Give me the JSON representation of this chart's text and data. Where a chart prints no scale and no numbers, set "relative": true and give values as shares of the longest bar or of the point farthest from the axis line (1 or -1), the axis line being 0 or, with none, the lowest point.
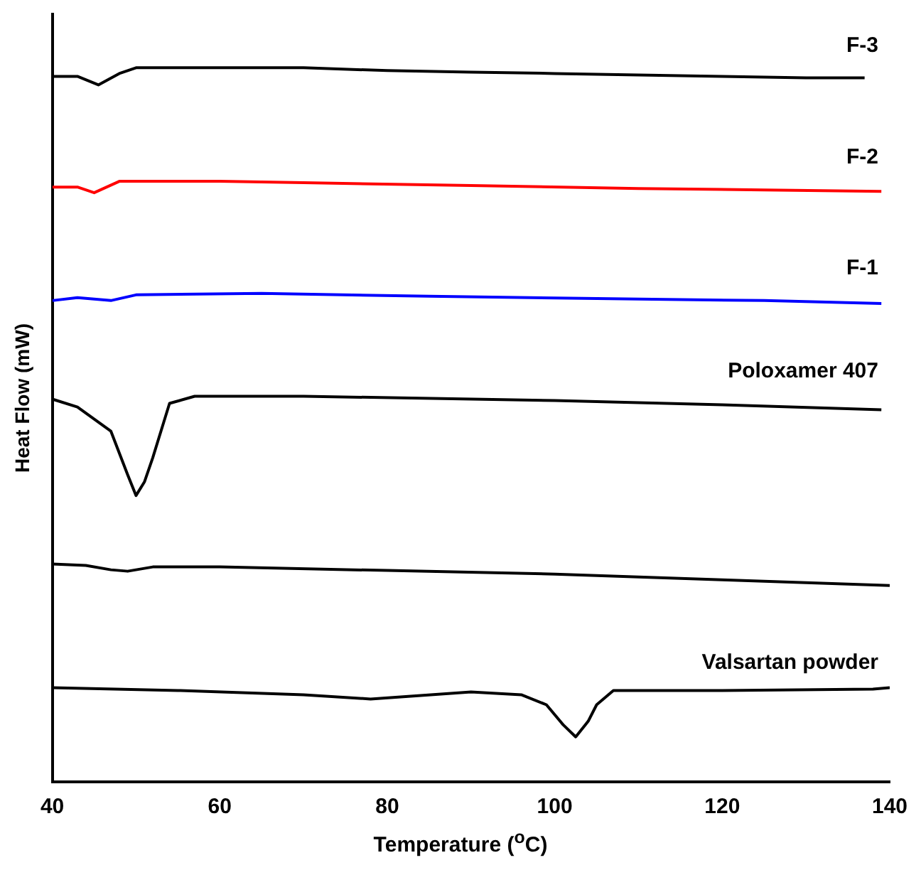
{
  "chart_data": {
    "type": "line",
    "relative": true,
    "xlabel": "Temperature ($^{o}$C)",
    "ylabel": "Heat Flow (mW)",
    "xlim": [
      40,
      140
    ],
    "xticks": [
      40,
      60,
      80,
      100,
      120,
      140
    ],
    "grid": false,
    "legend": false,
    "marker": "none",
    "line_style": "solid",
    "series": [
      {
        "name": "F-3",
        "color": "#000000",
        "x": [
          40,
          43,
          45.5,
          48,
          50,
          60,
          70,
          80,
          90,
          100,
          110,
          120,
          130,
          137
        ],
        "values": [
          0.988,
          0.988,
          0.976,
          0.992,
          1,
          1,
          1,
          0.996,
          0.994,
          0.992,
          0.99,
          0.988,
          0.986,
          0.986
        ]
      },
      {
        "name": "F-2",
        "color": "#ff0000",
        "x": [
          40,
          43,
          45,
          48,
          60,
          70,
          90,
          110,
          125,
          139
        ],
        "values": [
          0.833,
          0.833,
          0.825,
          0.841,
          0.841,
          0.839,
          0.835,
          0.831,
          0.829,
          0.827
        ]
      },
      {
        "name": "F-1",
        "color": "#0000ff",
        "x": [
          40,
          43,
          47,
          50,
          65,
          85,
          110,
          125,
          139
        ],
        "values": [
          0.674,
          0.678,
          0.674,
          0.682,
          0.684,
          0.68,
          0.676,
          0.674,
          0.67
        ]
      },
      {
        "name": "Poloxamer 407",
        "color": "#000000",
        "x": [
          40,
          43,
          47,
          49,
          50,
          51,
          52,
          54,
          57,
          70,
          100,
          120,
          139
        ],
        "values": [
          0.536,
          0.525,
          0.491,
          0.43,
          0.401,
          0.42,
          0.454,
          0.53,
          0.54,
          0.54,
          0.534,
          0.528,
          0.521
        ]
      },
      {
        "color": "#000000",
        "x": [
          40,
          44,
          47,
          49,
          52,
          60,
          80,
          100,
          120,
          140
        ],
        "values": [
          0.305,
          0.303,
          0.297,
          0.295,
          0.301,
          0.301,
          0.296,
          0.291,
          0.283,
          0.275
        ]
      },
      {
        "name": "Valsartan powder",
        "color": "#000000",
        "x": [
          40,
          55,
          70,
          78,
          90,
          96,
          99,
          101,
          102.5,
          104,
          105,
          107,
          120,
          138,
          140
        ],
        "values": [
          0.132,
          0.128,
          0.122,
          0.116,
          0.126,
          0.122,
          0.108,
          0.08,
          0.063,
          0.085,
          0.108,
          0.128,
          0.128,
          0.13,
          0.132
        ]
      }
    ]
  }
}
